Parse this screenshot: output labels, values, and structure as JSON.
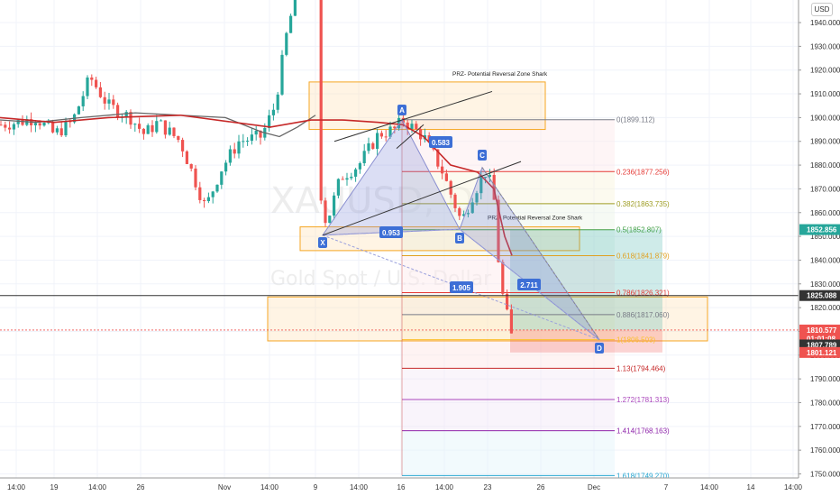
{
  "currency_button": "USD",
  "watermark": {
    "symbol": "XAUUSD, D",
    "name": "Gold Spot / U.S. Dollar"
  },
  "chart_data": {
    "type": "candlestick",
    "symbol": "XAUUSD",
    "ylim": [
      1746,
      1962
    ],
    "y_ticks": [
      1750,
      1760,
      1770,
      1780,
      1790,
      1800,
      1810,
      1820,
      1830,
      1840,
      1850,
      1860,
      1870,
      1880,
      1890,
      1900,
      1910,
      1920,
      1930,
      1940
    ],
    "y_tick_labels": [
      "1750.000",
      "1760.000",
      "1770.000",
      "1780.000",
      "1790.000",
      "1800.000",
      "1810.000",
      "1820.000",
      "1830.000",
      "1840.000",
      "1850.000",
      "1860.000",
      "1870.000",
      "1880.000",
      "1890.000",
      "1900.000",
      "1910.000",
      "1920.000",
      "1930.000",
      "1940.000"
    ],
    "x_ticks": [
      "14:00",
      "19",
      "14:00",
      "26",
      "Nov",
      "14:00",
      "9",
      "14:00",
      "16",
      "14:00",
      "23",
      "26",
      "Dec",
      "7",
      "14:00",
      "14",
      "14:00"
    ],
    "price_labels": [
      {
        "value": "1852.856",
        "price": 1852.856,
        "color": "#26a69a"
      },
      {
        "value": "1825.088",
        "price": 1825.088,
        "color": "#333333"
      },
      {
        "value": "1810.577",
        "price": 1810.577,
        "color": "#ef5350"
      },
      {
        "value": "01:01:08",
        "price": 1806.9,
        "color": "#ef5350"
      },
      {
        "value": "1807.789",
        "price": 1804.3,
        "color": "#333333"
      },
      {
        "value": "1801.121",
        "price": 1801.121,
        "color": "#ef5350"
      }
    ],
    "fib_levels": [
      {
        "label": "0(1899.112)",
        "price": 1899.112,
        "color": "#787b86"
      },
      {
        "label": "0.236(1877.256)",
        "price": 1877.256,
        "color": "#e53935"
      },
      {
        "label": "0.382(1863.735)",
        "price": 1863.735,
        "color": "#9e9d24"
      },
      {
        "label": "0.5(1852.807)",
        "price": 1852.807,
        "color": "#43a047"
      },
      {
        "label": "0.618(1841.879)",
        "price": 1841.879,
        "color": "#e0a020"
      },
      {
        "label": "0.786(1826.321)",
        "price": 1826.321,
        "color": "#e53935"
      },
      {
        "label": "0.886(1817.060)",
        "price": 1817.06,
        "color": "#787b86"
      },
      {
        "label": "1(1806.503)",
        "price": 1806.503,
        "color": "#fbc02d"
      },
      {
        "label": "1.13(1794.464)",
        "price": 1794.464,
        "color": "#c62828"
      },
      {
        "label": "1.272(1781.313)",
        "price": 1781.313,
        "color": "#ab47bc"
      },
      {
        "label": "1.414(1768.163)",
        "price": 1768.163,
        "color": "#8e24aa"
      },
      {
        "label": "1.618(1749.270)",
        "price": 1749.27,
        "color": "#26a6d1"
      }
    ],
    "harmonic_points": [
      {
        "name": "X",
        "price": 1850.5
      },
      {
        "name": "A",
        "price": 1899.1
      },
      {
        "name": "B",
        "price": 1853.0
      },
      {
        "name": "C",
        "price": 1879.0
      },
      {
        "name": "D",
        "price": 1806.5
      }
    ],
    "ratio_labels": [
      "0.583",
      "0.953",
      "2.711",
      "1.905"
    ],
    "zones": [
      {
        "title": "PRZ- Potential Reversal Zone Shark",
        "top": 1915.0,
        "bottom": 1895.0
      },
      {
        "title": "PRZ- Potential Reversal Zone Shark",
        "top": 1854.0,
        "bottom": 1844.0
      },
      {
        "title": "",
        "top": 1824.5,
        "bottom": 1806.0
      }
    ],
    "series": [
      {
        "name": "",
        "type": "moving-average",
        "color": "#c62828"
      }
    ]
  }
}
